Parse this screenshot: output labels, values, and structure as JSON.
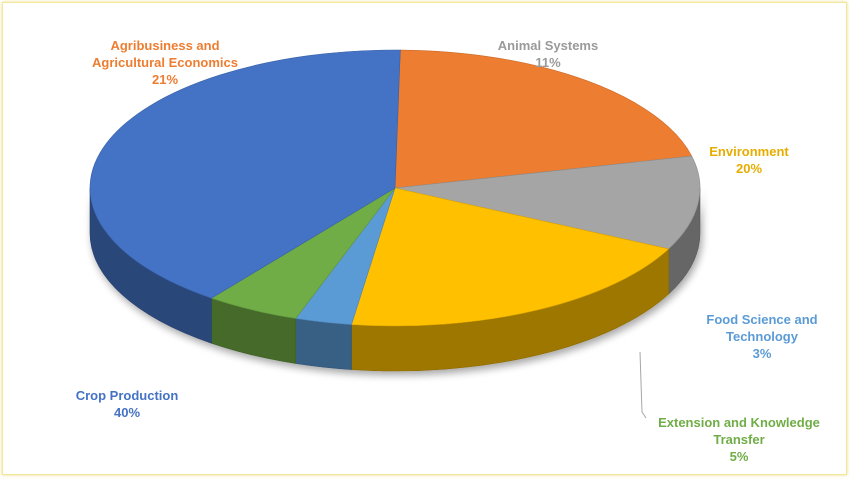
{
  "chart_data": {
    "type": "pie",
    "style": "3d",
    "slices": [
      {
        "name": "Agribusiness and Agricultural Economics",
        "label_lines": [
          "Agribusiness and",
          "Agricultural Economics"
        ],
        "value_label": "21%",
        "value": 21,
        "color": "#ED7D31"
      },
      {
        "name": "Animal Systems",
        "label_lines": [
          "Animal Systems"
        ],
        "value_label": "11%",
        "value": 11,
        "color": "#A5A5A5"
      },
      {
        "name": "Environment",
        "label_lines": [
          "Environment"
        ],
        "value_label": "20%",
        "value": 20,
        "color": "#FFC000"
      },
      {
        "name": "Food Science and Technology",
        "label_lines": [
          "Food Science and",
          "Technology"
        ],
        "value_label": "3%",
        "value": 3,
        "color": "#5B9BD5"
      },
      {
        "name": "Extension and Knowledge Transfer",
        "label_lines": [
          "Extension and Knowledge",
          "Transfer"
        ],
        "value_label": "5%",
        "value": 5,
        "color": "#70AD47"
      },
      {
        "name": "Crop Production",
        "label_lines": [
          "Crop Production"
        ],
        "value_label": "40%",
        "value": 40,
        "color": "#4472C4"
      }
    ]
  }
}
